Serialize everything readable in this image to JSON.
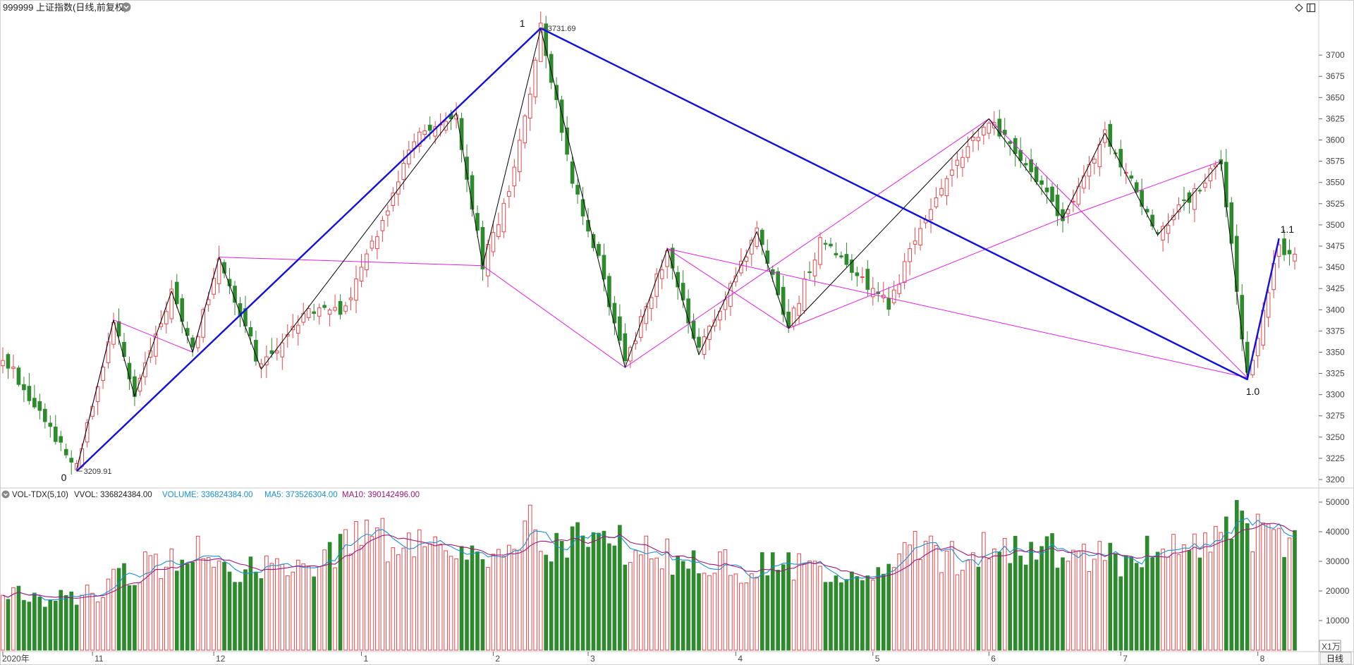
{
  "header": {
    "symbol_title": "999999 上证指数(日线,前复权)"
  },
  "toolbar": {
    "icons": [
      "diamond-icon",
      "panel-icon",
      "chevron-down-icon"
    ]
  },
  "volume_panel": {
    "indicator": "VOL-TDX(5,10)",
    "vvol": "VVOL: 336824384.00",
    "volume": "VOLUME: 336824384.00",
    "ma5": "MA5: 373526304.00",
    "ma10": "MA10: 390142496.00",
    "unit_label": "X1万"
  },
  "footer": {
    "period_tab": "日线",
    "year_label": "2020年"
  },
  "colors": {
    "up": "#e8484b",
    "down": "#2d8a2d",
    "wave_major": "#1010e0",
    "wave_minor": "#000000",
    "wave_pink": "#e020e0",
    "ma5": "#1a8fd6",
    "ma10": "#a0177a",
    "vvol_text": "#222222",
    "volume_text": "#1a8fd6",
    "ma5_text": "#1a8fd6",
    "ma10_text": "#a0177a"
  },
  "chart_data": [
    {
      "type": "candlestick",
      "title": "999999 上证指数(日线,前复权)",
      "ylim": [
        3200,
        3740
      ],
      "y_ticks": [
        3200,
        3225,
        3250,
        3275,
        3300,
        3325,
        3350,
        3375,
        3400,
        3425,
        3450,
        3475,
        3500,
        3525,
        3550,
        3575,
        3600,
        3625,
        3650,
        3675,
        3700
      ],
      "month_labels": [
        {
          "label": "2020年",
          "bar": 0
        },
        {
          "label": "11",
          "bar": 17
        },
        {
          "label": "12",
          "bar": 40
        },
        {
          "label": "1",
          "bar": 68
        },
        {
          "label": "2",
          "bar": 93
        },
        {
          "label": "3",
          "bar": 111
        },
        {
          "label": "4",
          "bar": 139
        },
        {
          "label": "5",
          "bar": 165
        },
        {
          "label": "6",
          "bar": 187
        },
        {
          "label": "7",
          "bar": 212
        },
        {
          "label": "8",
          "bar": 238
        }
      ],
      "key_points": [
        {
          "label": "0",
          "value": 3209.91,
          "bar": 14,
          "printed": "3209.91"
        },
        {
          "label": "1",
          "value": 3731.69,
          "bar": 102,
          "printed": "3731.69"
        },
        {
          "label": "1.0",
          "value": 3318,
          "bar": 236,
          "printed": ""
        },
        {
          "label": "1.1",
          "value": 3484,
          "bar": 242,
          "printed": ""
        }
      ],
      "anchors": [
        {
          "bar": 0,
          "price": 3345
        },
        {
          "bar": 7,
          "price": 3278
        },
        {
          "bar": 13,
          "price": 3222
        },
        {
          "bar": 14,
          "price": 3212
        },
        {
          "bar": 21,
          "price": 3385
        },
        {
          "bar": 25,
          "price": 3298
        },
        {
          "bar": 32,
          "price": 3420
        },
        {
          "bar": 36,
          "price": 3350
        },
        {
          "bar": 41,
          "price": 3460
        },
        {
          "bar": 49,
          "price": 3330
        },
        {
          "bar": 57,
          "price": 3395
        },
        {
          "bar": 65,
          "price": 3400
        },
        {
          "bar": 78,
          "price": 3600
        },
        {
          "bar": 86,
          "price": 3630
        },
        {
          "bar": 91,
          "price": 3455
        },
        {
          "bar": 96,
          "price": 3540
        },
        {
          "bar": 100,
          "price": 3660
        },
        {
          "bar": 102,
          "price": 3731
        },
        {
          "bar": 108,
          "price": 3550
        },
        {
          "bar": 113,
          "price": 3460
        },
        {
          "bar": 118,
          "price": 3335
        },
        {
          "bar": 126,
          "price": 3470
        },
        {
          "bar": 132,
          "price": 3350
        },
        {
          "bar": 143,
          "price": 3492
        },
        {
          "bar": 149,
          "price": 3380
        },
        {
          "bar": 155,
          "price": 3480
        },
        {
          "bar": 168,
          "price": 3405
        },
        {
          "bar": 176,
          "price": 3525
        },
        {
          "bar": 187,
          "price": 3625
        },
        {
          "bar": 201,
          "price": 3508
        },
        {
          "bar": 209,
          "price": 3608
        },
        {
          "bar": 219,
          "price": 3488
        },
        {
          "bar": 231,
          "price": 3575
        },
        {
          "bar": 236,
          "price": 3320
        },
        {
          "bar": 242,
          "price": 3475
        },
        {
          "bar": 245,
          "price": 3460
        }
      ],
      "waves": {
        "major": [
          [
            14,
            3209.91
          ],
          [
            102,
            3731.69
          ],
          [
            236,
            3318
          ],
          [
            242,
            3484
          ]
        ],
        "minor": [
          [
            14,
            3212
          ],
          [
            21,
            3388
          ],
          [
            25,
            3298
          ],
          [
            32,
            3422
          ],
          [
            36,
            3350
          ],
          [
            41,
            3462
          ],
          [
            49,
            3330
          ],
          [
            86,
            3632
          ],
          [
            91,
            3452
          ],
          [
            102,
            3731
          ],
          [
            118,
            3332
          ],
          [
            126,
            3472
          ],
          [
            132,
            3347
          ],
          [
            143,
            3492
          ],
          [
            149,
            3378
          ],
          [
            187,
            3625
          ],
          [
            201,
            3508
          ],
          [
            209,
            3608
          ],
          [
            219,
            3488
          ],
          [
            231,
            3575
          ],
          [
            236,
            3320
          ]
        ],
        "pink": [
          [
            14,
            3212
          ],
          [
            21,
            3388
          ],
          [
            36,
            3350
          ],
          [
            41,
            3462
          ],
          [
            91,
            3452
          ],
          [
            118,
            3332
          ],
          [
            187,
            3625
          ],
          [
            236,
            3320
          ],
          [
            126,
            3472
          ],
          [
            149,
            3378
          ],
          [
            201,
            3508
          ],
          [
            231,
            3575
          ]
        ]
      }
    },
    {
      "type": "bar",
      "title": "VOL-TDX(5,10)",
      "ylim": [
        0,
        50000
      ],
      "y_ticks": [
        10000,
        20000,
        30000,
        40000,
        50000
      ],
      "vol_anchors": [
        {
          "bar": 0,
          "v": 19000
        },
        {
          "bar": 8,
          "v": 17000
        },
        {
          "bar": 14,
          "v": 18500
        },
        {
          "bar": 20,
          "v": 22000
        },
        {
          "bar": 27,
          "v": 28000
        },
        {
          "bar": 35,
          "v": 32000
        },
        {
          "bar": 41,
          "v": 31000
        },
        {
          "bar": 48,
          "v": 27000
        },
        {
          "bar": 55,
          "v": 30000
        },
        {
          "bar": 62,
          "v": 33000
        },
        {
          "bar": 69,
          "v": 38000
        },
        {
          "bar": 76,
          "v": 36000
        },
        {
          "bar": 84,
          "v": 32000
        },
        {
          "bar": 92,
          "v": 28000
        },
        {
          "bar": 100,
          "v": 39000
        },
        {
          "bar": 108,
          "v": 36000
        },
        {
          "bar": 116,
          "v": 38000
        },
        {
          "bar": 124,
          "v": 32000
        },
        {
          "bar": 132,
          "v": 30000
        },
        {
          "bar": 140,
          "v": 28000
        },
        {
          "bar": 148,
          "v": 30000
        },
        {
          "bar": 156,
          "v": 27000
        },
        {
          "bar": 164,
          "v": 28000
        },
        {
          "bar": 172,
          "v": 34000
        },
        {
          "bar": 180,
          "v": 32000
        },
        {
          "bar": 188,
          "v": 35000
        },
        {
          "bar": 196,
          "v": 33000
        },
        {
          "bar": 204,
          "v": 34000
        },
        {
          "bar": 212,
          "v": 30000
        },
        {
          "bar": 220,
          "v": 34000
        },
        {
          "bar": 228,
          "v": 37000
        },
        {
          "bar": 234,
          "v": 44000
        },
        {
          "bar": 240,
          "v": 40000
        },
        {
          "bar": 245,
          "v": 34000
        }
      ],
      "big_bars": [
        {
          "bar": 100,
          "v": 49000
        },
        {
          "bar": 37,
          "v": 38500
        },
        {
          "bar": 232,
          "v": 45000
        },
        {
          "bar": 235,
          "v": 47000
        },
        {
          "bar": 239,
          "v": 43000
        }
      ]
    }
  ]
}
